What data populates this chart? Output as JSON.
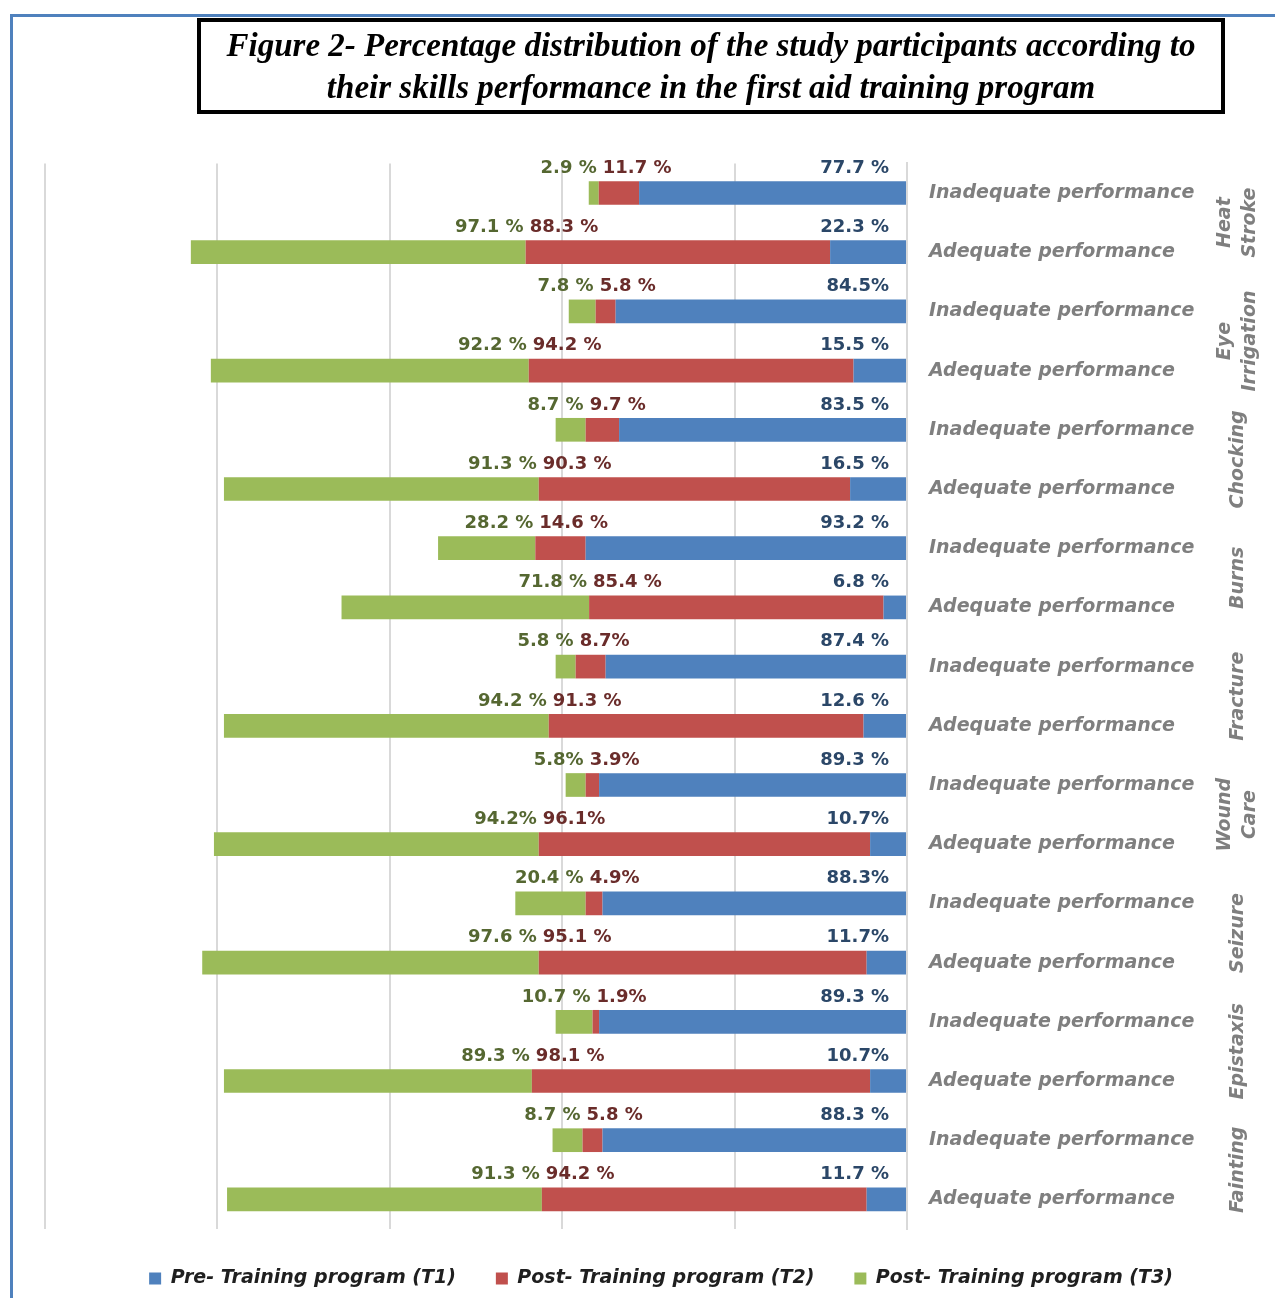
{
  "chart_data": {
    "type": "bar",
    "orientation": "horizontal",
    "stacked": true,
    "title": "Figure 2- Percentage distribution of the study participants according to their skills performance in the first aid training program",
    "categories": [
      "Inadequate performance",
      "Adequate performance",
      "Inadequate performance",
      "Adequate performance",
      "Inadequate performance",
      "Adequate performance",
      "Inadequate performance",
      "Adequate performance",
      "Inadequate performance",
      "Adequate performance",
      "Inadequate performance",
      "Adequate performance",
      "Inadequate performance",
      "Adequate performance",
      "Inadequate performance",
      "Adequate performance",
      "Inadequate performance",
      "Adequate performance"
    ],
    "series": [
      {
        "name": "Pre- Training program (T1)",
        "color": "#4f81bd",
        "values": [
          77.7,
          22.3,
          84.5,
          15.5,
          83.5,
          16.5,
          93.2,
          6.8,
          87.4,
          12.6,
          89.3,
          10.7,
          88.3,
          11.7,
          89.3,
          10.7,
          88.3,
          11.7
        ],
        "value_labels": [
          "77.7 %",
          "22.3 %",
          "84.5%",
          "15.5 %",
          "83.5 %",
          "16.5 %",
          "93.2 %",
          "6.8 %",
          "87.4 %",
          "12.6 %",
          "89.3 %",
          "10.7%",
          "88.3%",
          "11.7%",
          "89.3 %",
          "10.7%",
          "88.3 %",
          "11.7 %"
        ]
      },
      {
        "name": "Post- Training program (T2)",
        "color": "#c0504d",
        "values": [
          11.7,
          88.3,
          5.8,
          94.2,
          9.7,
          90.3,
          14.6,
          85.4,
          8.7,
          91.3,
          3.9,
          96.1,
          4.9,
          95.1,
          1.9,
          98.1,
          5.8,
          94.2
        ],
        "value_labels": [
          "11.7 %",
          "88.3 %",
          "5.8 %",
          "94.2 %",
          "9.7 %",
          "90.3 %",
          "14.6 %",
          "85.4 %",
          "8.7%",
          "91.3 %",
          "3.9%",
          "96.1%",
          "4.9%",
          "95.1 %",
          "1.9%",
          "98.1 %",
          "5.8 %",
          "94.2 %"
        ]
      },
      {
        "name": "Post- Training program (T3)",
        "color": "#9bbb59",
        "values": [
          2.9,
          97.1,
          7.8,
          92.2,
          8.7,
          91.3,
          28.2,
          71.8,
          5.8,
          94.2,
          5.8,
          94.2,
          20.4,
          97.6,
          10.7,
          89.3,
          8.7,
          91.3
        ],
        "value_labels": [
          "2.9 %",
          "97.1 %",
          "7.8 %",
          "92.2 %",
          "8.7 %",
          "91.3 %",
          "28.2 %",
          "71.8 %",
          "5.8 %",
          "94.2 %",
          "5.8%",
          "94.2%",
          "20.4 %",
          "97.6 %",
          "10.7 %",
          "89.3 %",
          "8.7 %",
          "91.3 %"
        ]
      }
    ],
    "xlim": [
      250,
      0
    ],
    "xticks": [
      {
        "value": 250,
        "label": null
      },
      {
        "value": 200,
        "label": null
      },
      {
        "value": 150,
        "label": null
      },
      {
        "value": 100,
        "label": null
      },
      {
        "value": 50,
        "label": null
      },
      {
        "value": 0,
        "label": null
      }
    ],
    "tick_labels": "y",
    "grid": "x",
    "legend": "bottom",
    "annotations": [
      "Heat Stroke",
      "Eye Irrigation",
      "Chocking",
      "Burns",
      "Fracture",
      "Wound Care",
      "Seizure",
      "Epistaxis",
      "Fainting"
    ]
  }
}
